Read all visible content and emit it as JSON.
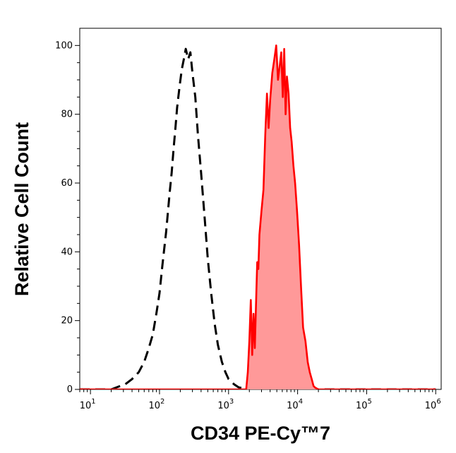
{
  "chart_data": {
    "type": "area",
    "xlabel": "CD34 PE-Cy™7",
    "ylabel": "Relative Cell Count",
    "x_scale": "log",
    "xlim": [
      7,
      1200000
    ],
    "ylim": [
      0,
      105
    ],
    "x_ticks": [
      {
        "base": "10",
        "exp": "1",
        "value": 10
      },
      {
        "base": "10",
        "exp": "2",
        "value": 100
      },
      {
        "base": "10",
        "exp": "3",
        "value": 1000
      },
      {
        "base": "10",
        "exp": "4",
        "value": 10000
      },
      {
        "base": "10",
        "exp": "5",
        "value": 100000
      },
      {
        "base": "10",
        "exp": "6",
        "value": 1000000
      }
    ],
    "y_ticks": [
      "0",
      "20",
      "40",
      "60",
      "80",
      "100"
    ],
    "grid": false,
    "series": [
      {
        "style": "dashed",
        "color": "#000000",
        "fill": "none",
        "x": [
          7,
          20,
          27,
          32,
          40,
          50,
          60,
          70,
          80,
          90,
          100,
          110,
          125,
          140,
          150,
          160,
          170,
          180,
          195,
          210,
          225,
          240,
          260,
          280,
          300,
          330,
          360,
          400,
          450,
          500,
          560,
          630,
          700,
          800,
          900,
          1000,
          1200,
          1400,
          1700,
          2000,
          1000000
        ],
        "y": [
          0,
          0,
          1,
          1.5,
          3,
          5,
          8,
          12,
          16,
          22,
          28,
          36,
          46,
          57,
          63,
          70,
          76,
          82,
          88,
          93,
          96,
          99,
          96,
          98,
          92,
          85,
          74,
          63,
          50,
          38,
          28,
          19,
          13,
          8,
          5,
          3,
          1.5,
          0.6,
          0.2,
          0,
          0
        ]
      },
      {
        "style": "solid",
        "color": "#ff0000",
        "fill": "#ff9999",
        "x": [
          7,
          1800,
          1900,
          2000,
          2100,
          2200,
          2300,
          2400,
          2500,
          2600,
          2700,
          2800,
          3000,
          3200,
          3400,
          3600,
          3800,
          4000,
          4300,
          4600,
          4900,
          5200,
          5500,
          5800,
          6100,
          6400,
          6700,
          7000,
          7400,
          7800,
          8200,
          8700,
          9200,
          9800,
          10500,
          11200,
          12000,
          13000,
          14000,
          15000,
          16000,
          17000,
          18000,
          20000,
          1000000
        ],
        "y": [
          0,
          0,
          5,
          14,
          26,
          10,
          22,
          12,
          25,
          37,
          35,
          45,
          52,
          58,
          74,
          86,
          76,
          84,
          92,
          96,
          100,
          90,
          94,
          98,
          85,
          99,
          80,
          91,
          86,
          76,
          72,
          65,
          60,
          52,
          42,
          30,
          18,
          14,
          8,
          5,
          3,
          1,
          0.5,
          0,
          0
        ]
      }
    ]
  }
}
